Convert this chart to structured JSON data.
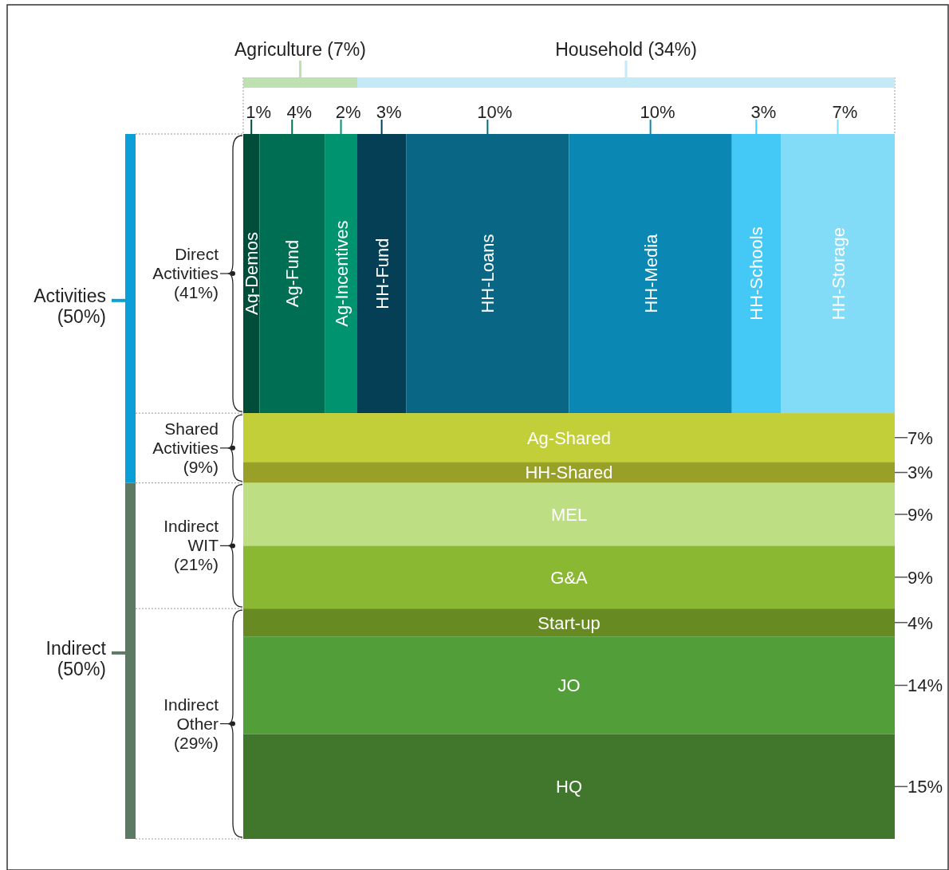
{
  "chart_data": {
    "type": "other",
    "categories": [
      "Ag-Demos",
      "Ag-Fund",
      "Ag-Incentives",
      "HH-Fund",
      "HH-Loans",
      "HH-Media",
      "HH-Schools",
      "HH-Storage",
      "Ag-Shared",
      "HH-Shared",
      "MEL",
      "G&A",
      "Start-up",
      "JO",
      "HQ"
    ],
    "colors": [
      "#004d3a",
      "#006e52",
      "#009370",
      "#053f55",
      "#096685",
      "#0a87b2",
      "#44c8f5",
      "#82dcf8",
      "#c2cf38",
      "#99a028",
      "#bede84",
      "#8ab833",
      "#688a23",
      "#529e38",
      "#41772c"
    ],
    "series": [
      {
        "name": "Direct Activities (41%)",
        "values": [
          1,
          4,
          2,
          3,
          10,
          10,
          3,
          7,
          null,
          null,
          null,
          null,
          null,
          null,
          null
        ],
        "value_labels": [
          "1%",
          "4%",
          "2%",
          "3%",
          "10%",
          "10%",
          "3%",
          "7%",
          null,
          null,
          null,
          null,
          null,
          null,
          null
        ]
      },
      {
        "name": "Shared Activities (9%)",
        "values": [
          null,
          null,
          null,
          null,
          null,
          null,
          null,
          null,
          7,
          3,
          null,
          null,
          null,
          null,
          null
        ],
        "value_labels": [
          null,
          null,
          null,
          null,
          null,
          null,
          null,
          null,
          "7%",
          "3%",
          null,
          null,
          null,
          null,
          null
        ]
      },
      {
        "name": "Indirect WIT (21%)",
        "values": [
          null,
          null,
          null,
          null,
          null,
          null,
          null,
          null,
          null,
          null,
          9,
          9,
          null,
          null,
          null
        ],
        "value_labels": [
          null,
          null,
          null,
          null,
          null,
          null,
          null,
          null,
          null,
          null,
          "9%",
          "9%",
          null,
          null,
          null
        ]
      },
      {
        "name": "Indirect Other (29%)",
        "values": [
          null,
          null,
          null,
          null,
          null,
          null,
          null,
          null,
          null,
          null,
          null,
          null,
          4,
          14,
          15
        ],
        "value_labels": [
          null,
          null,
          null,
          null,
          null,
          null,
          null,
          null,
          null,
          null,
          null,
          null,
          "4%",
          "14%",
          "15%"
        ]
      }
    ],
    "annotations": [
      "Agriculture (7%)",
      "Household (34%)",
      "Activities (50%)",
      "Indirect (50%)"
    ]
  }
}
